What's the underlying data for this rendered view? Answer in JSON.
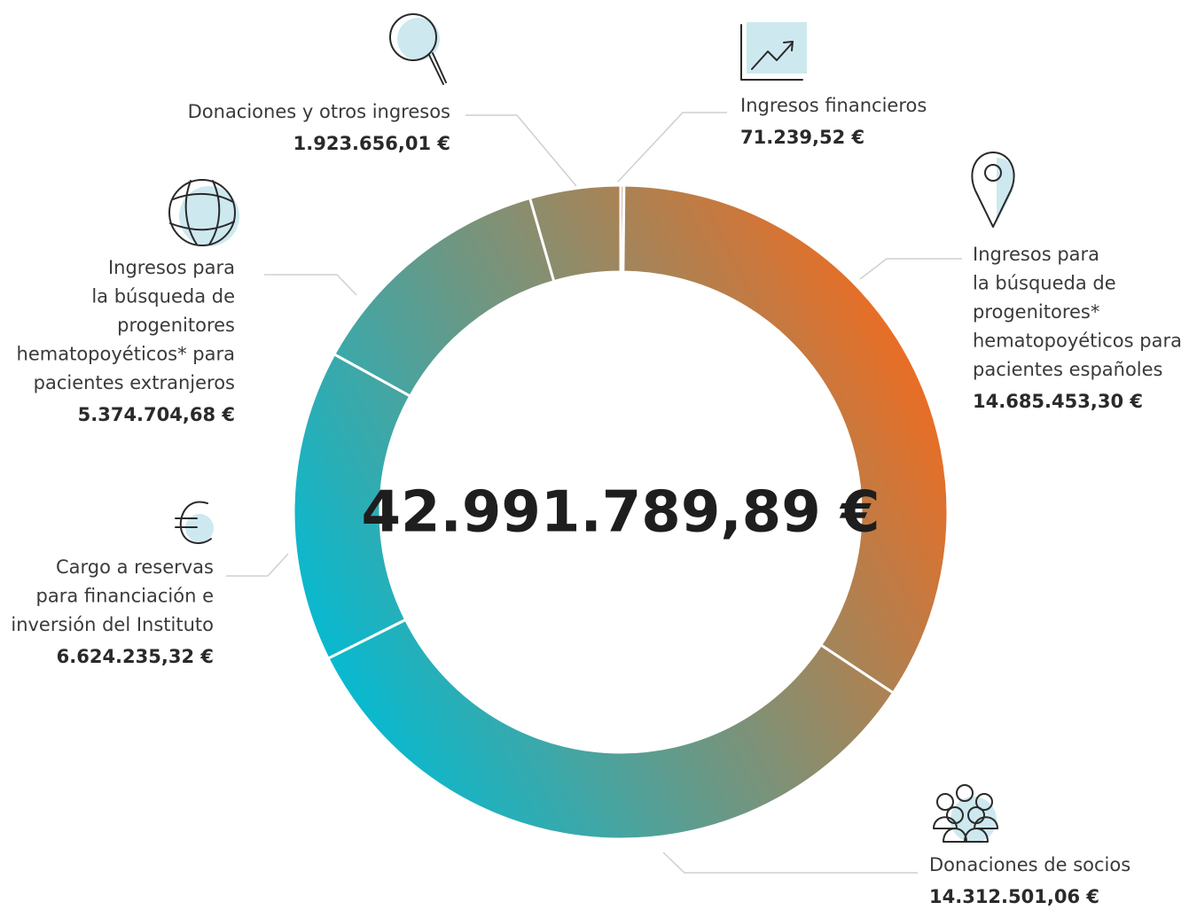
{
  "chart_data": {
    "type": "pie",
    "center_text": "42.991.789,89 €",
    "categories": [
      "Ingresos financieros",
      "Ingresos para\nla búsqueda de\nprogenitores*\nhematopoyéticos para\npacientes españoles",
      "Donaciones de socios",
      "Cargo a reservas\npara financiación e\ninversión del Instituto",
      "Ingresos para\nla búsqueda de\nprogenitores\nhematopoyéticos* para\npacientes extranjeros",
      "Donaciones y otros ingresos"
    ],
    "values": [
      71239.52,
      14685453.3,
      14312501.06,
      6624235.32,
      5374704.68,
      1923656.01
    ],
    "value_labels": [
      "71.239,52 €",
      "14.685.453,30 €",
      "14.312.501,06 €",
      "6.624.235,32 €",
      "5.374.704,68 €",
      "1.923.656,01 €"
    ],
    "gradient": [
      "#f06b20",
      "#00bcd6"
    ]
  }
}
